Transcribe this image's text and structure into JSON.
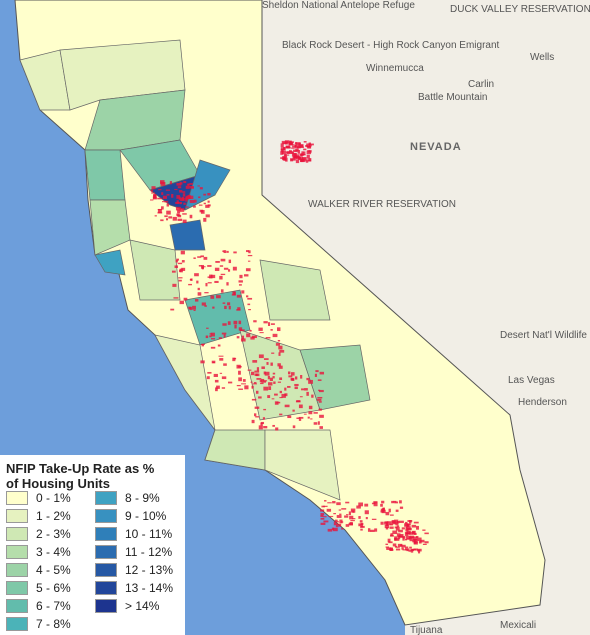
{
  "legend": {
    "title": "NFIP Take-Up Rate as % of Housing Units",
    "items": [
      {
        "label": "0 - 1%",
        "color": "#ffffcc"
      },
      {
        "label": "1 - 2%",
        "color": "#e6f2c0"
      },
      {
        "label": "2 - 3%",
        "color": "#cfe8b4"
      },
      {
        "label": "3 - 4%",
        "color": "#b5deab"
      },
      {
        "label": "4 - 5%",
        "color": "#9cd3a7"
      },
      {
        "label": "5 - 6%",
        "color": "#7fc8a8"
      },
      {
        "label": "6 - 7%",
        "color": "#62bcac"
      },
      {
        "label": "7 - 8%",
        "color": "#4bb3b8"
      },
      {
        "label": "8 - 9%",
        "color": "#3fa2c2"
      },
      {
        "label": "9 - 10%",
        "color": "#3891c0"
      },
      {
        "label": "10 - 11%",
        "color": "#2f7fb9"
      },
      {
        "label": "11 - 12%",
        "color": "#2b6cb0"
      },
      {
        "label": "12 - 13%",
        "color": "#2658a4"
      },
      {
        "label": "13 - 14%",
        "color": "#22469a"
      },
      {
        "label": "> 14%",
        "color": "#1d348f"
      }
    ]
  },
  "map": {
    "labels": [
      "NEVADA",
      "Winnemucca",
      "Battle Mountain",
      "Carlin",
      "Wells",
      "Las Vegas",
      "Henderson",
      "Mexicali",
      "Tijuana",
      "DUCK VALLEY RESERVATION",
      "Sheldon National Antelope Refuge",
      "Black Rock Desert - High Rock Canyon Emigrant",
      "Desert Nat'l Wildlife Range",
      "WALKER RIVER RESERVATION"
    ]
  }
}
